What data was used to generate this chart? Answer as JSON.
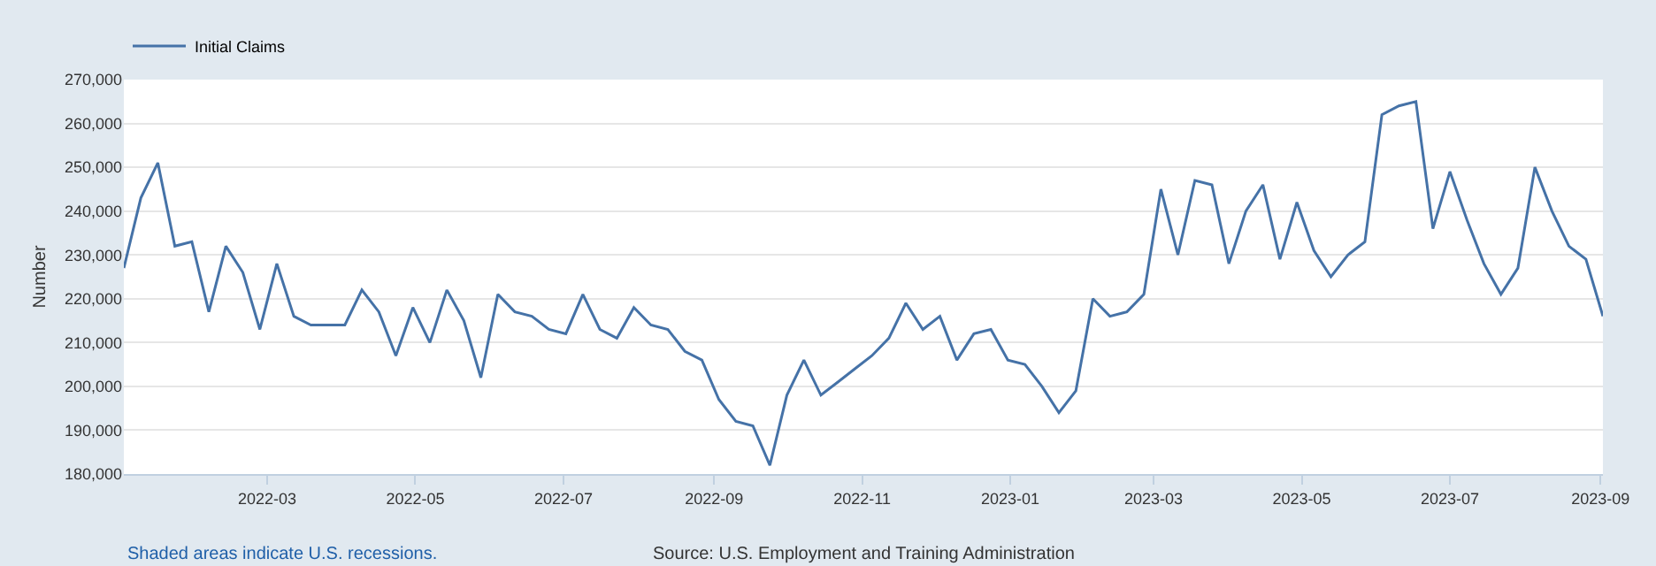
{
  "chart_data": {
    "type": "line",
    "ylabel": "Number",
    "x": [
      "2022-01-01",
      "2022-01-08",
      "2022-01-15",
      "2022-01-22",
      "2022-01-29",
      "2022-02-05",
      "2022-02-12",
      "2022-02-19",
      "2022-02-26",
      "2022-03-05",
      "2022-03-12",
      "2022-03-19",
      "2022-03-26",
      "2022-04-02",
      "2022-04-09",
      "2022-04-16",
      "2022-04-23",
      "2022-04-30",
      "2022-05-07",
      "2022-05-14",
      "2022-05-21",
      "2022-05-28",
      "2022-06-04",
      "2022-06-11",
      "2022-06-18",
      "2022-06-25",
      "2022-07-02",
      "2022-07-09",
      "2022-07-16",
      "2022-07-23",
      "2022-07-30",
      "2022-08-06",
      "2022-08-13",
      "2022-08-20",
      "2022-08-27",
      "2022-09-03",
      "2022-09-10",
      "2022-09-17",
      "2022-09-24",
      "2022-10-01",
      "2022-10-08",
      "2022-10-15",
      "2022-10-22",
      "2022-10-29",
      "2022-11-05",
      "2022-11-12",
      "2022-11-19",
      "2022-11-26",
      "2022-12-03",
      "2022-12-10",
      "2022-12-17",
      "2022-12-24",
      "2022-12-31",
      "2023-01-07",
      "2023-01-14",
      "2023-01-21",
      "2023-01-28",
      "2023-02-04",
      "2023-02-11",
      "2023-02-18",
      "2023-02-25",
      "2023-03-04",
      "2023-03-11",
      "2023-03-18",
      "2023-03-25",
      "2023-04-01",
      "2023-04-08",
      "2023-04-15",
      "2023-04-22",
      "2023-04-29",
      "2023-05-06",
      "2023-05-13",
      "2023-05-20",
      "2023-05-27",
      "2023-06-03",
      "2023-06-10",
      "2023-06-17",
      "2023-06-24",
      "2023-07-01",
      "2023-07-08",
      "2023-07-15",
      "2023-07-22",
      "2023-07-29",
      "2023-08-05",
      "2023-08-12",
      "2023-08-19",
      "2023-08-26",
      "2023-09-02"
    ],
    "series": [
      {
        "name": "Initial Claims",
        "color": "#4572a7",
        "values": [
          227000,
          243000,
          251000,
          232000,
          233000,
          217000,
          232000,
          226000,
          213000,
          228000,
          216000,
          214000,
          214000,
          214000,
          222000,
          217000,
          207000,
          218000,
          210000,
          222000,
          215000,
          202000,
          221000,
          217000,
          216000,
          213000,
          212000,
          221000,
          213000,
          211000,
          218000,
          214000,
          213000,
          208000,
          206000,
          197000,
          192000,
          191000,
          182000,
          198000,
          206000,
          198000,
          201000,
          204000,
          207000,
          211000,
          219000,
          213000,
          216000,
          206000,
          212000,
          213000,
          206000,
          205000,
          200000,
          194000,
          199000,
          220000,
          216000,
          217000,
          221000,
          245000,
          230000,
          247000,
          246000,
          228000,
          240000,
          246000,
          229000,
          242000,
          231000,
          225000,
          230000,
          233000,
          262000,
          264000,
          265000,
          236000,
          249000,
          238000,
          228000,
          221000,
          227000,
          250000,
          240000,
          232000,
          229000,
          216000
        ]
      }
    ],
    "xlim": [
      "2022-01-01",
      "2023-09-02"
    ],
    "xticks": [
      "2022-03",
      "2022-05",
      "2022-07",
      "2022-09",
      "2022-11",
      "2023-01",
      "2023-03",
      "2023-05",
      "2023-07",
      "2023-09"
    ],
    "ylim": [
      180000,
      270000
    ],
    "yticks": [
      {
        "value": 180000,
        "label": "180,000"
      },
      {
        "value": 190000,
        "label": "190,000"
      },
      {
        "value": 200000,
        "label": "200,000"
      },
      {
        "value": 210000,
        "label": "210,000"
      },
      {
        "value": 220000,
        "label": "220,000"
      },
      {
        "value": 230000,
        "label": "230,000"
      },
      {
        "value": 240000,
        "label": "240,000"
      },
      {
        "value": 250000,
        "label": "250,000"
      },
      {
        "value": 260000,
        "label": "260,000"
      },
      {
        "value": 270000,
        "label": "270,000"
      }
    ],
    "grid": "y",
    "legend": "top left",
    "marker": "none",
    "line_style": "solid",
    "annotations": [
      "Shaded areas indicate U.S. recessions.",
      "Source: U.S. Employment and Training Administration"
    ]
  }
}
